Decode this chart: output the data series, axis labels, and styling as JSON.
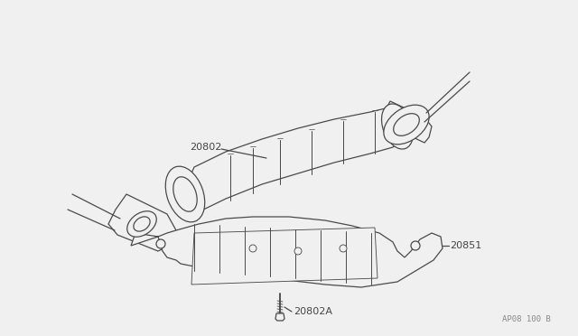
{
  "background_color": "#f0f0f0",
  "line_color": "#4a4a4a",
  "fig_width": 6.4,
  "fig_height": 3.72,
  "dpi": 100,
  "watermark_text": "AP08 100 B",
  "label_20802": "20802",
  "label_20851": "20851",
  "label_20802A": "20802A"
}
